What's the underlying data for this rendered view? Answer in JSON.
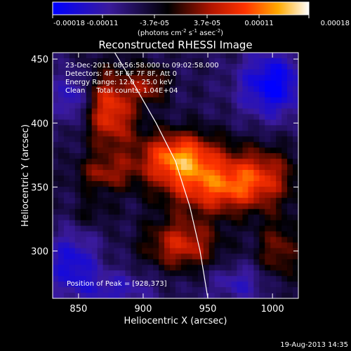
{
  "chart_data": {
    "type": "heatmap",
    "title": "Reconstructed RHESSI Image",
    "xlabel": "Heliocentric X (arcsec)",
    "ylabel": "Heliocentric Y (arcsec)",
    "xlim": [
      830,
      1020
    ],
    "ylim": [
      263,
      455
    ],
    "x_ticks": [
      850,
      900,
      950,
      1000
    ],
    "y_ticks": [
      300,
      350,
      400,
      450
    ],
    "colorbar": {
      "ticks": [
        "-0.00018",
        "-0.00011",
        "-3.7e-05",
        "3.7e-05",
        "0.00011",
        "0.00018"
      ],
      "label_lines": [
        "(photons cm",
        "-2",
        " s",
        "-1",
        " asec",
        "-2",
        ")"
      ],
      "range": [
        -0.00018,
        0.00018
      ]
    },
    "annotations": [
      "23-Dec-2011 08:56:58.000 to 09:02:58.000",
      "Detectors: 4F 5F 6F 7F 8F, Att 0",
      "Energy Range: 12.0 - 25.0 keV",
      "Clean     Total counts: 1.04E+04"
    ],
    "peak_label": "Position of Peak = [928,373]",
    "peak": [
      928,
      373
    ],
    "limb_line": [
      [
        878,
        455
      ],
      [
        893,
        430
      ],
      [
        910,
        400
      ],
      [
        925,
        370
      ],
      [
        936,
        335
      ],
      [
        944,
        300
      ],
      [
        950,
        263
      ]
    ],
    "sources": [
      {
        "x": 928,
        "y": 373,
        "sx": 22,
        "sy": 14,
        "amp": 0.00018
      },
      {
        "x": 875,
        "y": 410,
        "sx": 14,
        "sy": 22,
        "amp": 0.00014
      },
      {
        "x": 905,
        "y": 430,
        "sx": 10,
        "sy": 10,
        "amp": 9e-05
      },
      {
        "x": 955,
        "y": 348,
        "sx": 28,
        "sy": 14,
        "amp": 0.00013
      },
      {
        "x": 990,
        "y": 360,
        "sx": 20,
        "sy": 16,
        "amp": 0.0001
      },
      {
        "x": 930,
        "y": 305,
        "sx": 20,
        "sy": 14,
        "amp": 0.00012
      },
      {
        "x": 1005,
        "y": 300,
        "sx": 12,
        "sy": 18,
        "amp": 8e-05
      },
      {
        "x": 870,
        "y": 360,
        "sx": 16,
        "sy": 10,
        "amp": 8e-05
      },
      {
        "x": 860,
        "y": 330,
        "sx": 12,
        "sy": 8,
        "amp": 4e-05
      },
      {
        "x": 845,
        "y": 420,
        "sx": 10,
        "sy": 14,
        "amp": -8e-05
      },
      {
        "x": 1000,
        "y": 430,
        "sx": 18,
        "sy": 18,
        "amp": -0.00012
      },
      {
        "x": 845,
        "y": 290,
        "sx": 14,
        "sy": 18,
        "amp": -9e-05
      },
      {
        "x": 880,
        "y": 270,
        "sx": 20,
        "sy": 10,
        "amp": -6e-05
      },
      {
        "x": 975,
        "y": 275,
        "sx": 18,
        "sy": 10,
        "amp": -6e-05
      }
    ]
  },
  "footer": {
    "timestamp": "19-Aug-2013 14:35"
  }
}
